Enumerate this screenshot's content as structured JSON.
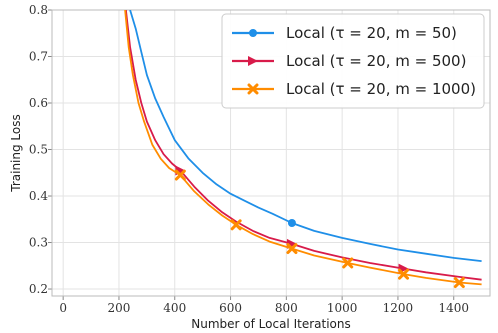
{
  "chart_data": {
    "type": "line",
    "title": "",
    "xlabel": "Number of Local Iterations",
    "ylabel": "Training Loss",
    "xlim": [
      -40,
      1530
    ],
    "ylim": [
      0.185,
      0.8
    ],
    "xticks": [
      0,
      200,
      400,
      600,
      800,
      1000,
      1200,
      1400
    ],
    "yticks": [
      0.2,
      0.3,
      0.4,
      0.5,
      0.6,
      0.7,
      0.8
    ],
    "grid": true,
    "legend_position": "top-right",
    "series": [
      {
        "name": "Local (τ = 20, m = 50)",
        "color": "#1f8fe8",
        "marker": "circle",
        "points": [
          [
            240,
            0.8
          ],
          [
            260,
            0.76
          ],
          [
            280,
            0.71
          ],
          [
            300,
            0.66
          ],
          [
            330,
            0.61
          ],
          [
            360,
            0.57
          ],
          [
            400,
            0.52
          ],
          [
            450,
            0.48
          ],
          [
            500,
            0.45
          ],
          [
            550,
            0.425
          ],
          [
            600,
            0.405
          ],
          [
            650,
            0.39
          ],
          [
            700,
            0.375
          ],
          [
            750,
            0.362
          ],
          [
            820,
            0.342
          ],
          [
            900,
            0.325
          ],
          [
            1000,
            0.31
          ],
          [
            1100,
            0.297
          ],
          [
            1200,
            0.285
          ],
          [
            1300,
            0.276
          ],
          [
            1400,
            0.267
          ],
          [
            1500,
            0.26
          ]
        ],
        "marker_points": [
          [
            820,
            0.342
          ]
        ]
      },
      {
        "name": "Local (τ = 20, m = 500)",
        "color": "#d81b4a",
        "marker": "triangle-right",
        "points": [
          [
            225,
            0.8
          ],
          [
            240,
            0.72
          ],
          [
            260,
            0.65
          ],
          [
            280,
            0.6
          ],
          [
            300,
            0.56
          ],
          [
            330,
            0.52
          ],
          [
            360,
            0.49
          ],
          [
            390,
            0.47
          ],
          [
            420,
            0.455
          ],
          [
            470,
            0.42
          ],
          [
            520,
            0.39
          ],
          [
            570,
            0.365
          ],
          [
            620,
            0.345
          ],
          [
            680,
            0.325
          ],
          [
            740,
            0.31
          ],
          [
            820,
            0.297
          ],
          [
            900,
            0.282
          ],
          [
            1000,
            0.268
          ],
          [
            1100,
            0.256
          ],
          [
            1220,
            0.244
          ],
          [
            1300,
            0.236
          ],
          [
            1420,
            0.226
          ],
          [
            1500,
            0.22
          ]
        ],
        "marker_points": [
          [
            420,
            0.455
          ],
          [
            820,
            0.297
          ],
          [
            1220,
            0.244
          ]
        ]
      },
      {
        "name": "Local (τ = 20, m = 1000)",
        "color": "#ff8c00",
        "marker": "x",
        "points": [
          [
            222,
            0.8
          ],
          [
            235,
            0.72
          ],
          [
            250,
            0.66
          ],
          [
            270,
            0.6
          ],
          [
            290,
            0.56
          ],
          [
            320,
            0.51
          ],
          [
            350,
            0.48
          ],
          [
            380,
            0.46
          ],
          [
            420,
            0.445
          ],
          [
            470,
            0.41
          ],
          [
            520,
            0.382
          ],
          [
            570,
            0.358
          ],
          [
            620,
            0.338
          ],
          [
            680,
            0.318
          ],
          [
            740,
            0.302
          ],
          [
            820,
            0.287
          ],
          [
            900,
            0.272
          ],
          [
            1020,
            0.256
          ],
          [
            1100,
            0.246
          ],
          [
            1220,
            0.232
          ],
          [
            1300,
            0.224
          ],
          [
            1420,
            0.214
          ],
          [
            1500,
            0.21
          ]
        ],
        "marker_points": [
          [
            420,
            0.445
          ],
          [
            620,
            0.338
          ],
          [
            820,
            0.287
          ],
          [
            1020,
            0.256
          ],
          [
            1220,
            0.232
          ],
          [
            1420,
            0.214
          ]
        ]
      }
    ]
  }
}
